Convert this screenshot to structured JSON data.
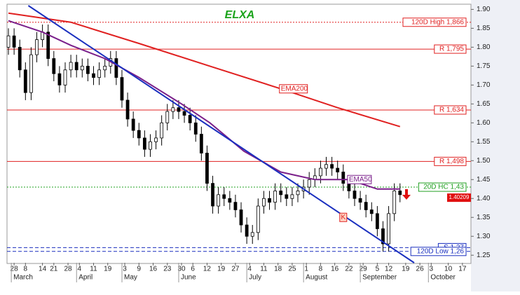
{
  "chart_data": {
    "type": "candlestick",
    "title": "ELXA",
    "x": [
      0,
      2,
      4,
      6,
      8,
      10,
      12,
      14,
      16,
      18,
      20,
      22,
      24,
      26,
      28,
      30,
      32,
      34,
      36,
      38,
      40,
      42,
      44,
      46,
      48,
      50,
      52,
      54,
      56,
      58,
      60,
      62,
      64,
      66,
      68,
      70,
      72,
      74,
      76,
      78,
      80,
      82,
      84,
      86,
      88,
      90,
      92,
      94,
      96,
      98,
      100,
      102,
      104,
      106,
      108,
      110,
      112,
      114,
      116,
      118,
      120,
      122,
      124,
      126,
      128,
      130,
      132,
      134,
      136,
      138
    ],
    "open": [
      1.8,
      1.83,
      1.8,
      1.74,
      1.68,
      1.78,
      1.82,
      1.84,
      1.77,
      1.73,
      1.7,
      1.74,
      1.76,
      1.74,
      1.75,
      1.73,
      1.72,
      1.74,
      1.75,
      1.77,
      1.72,
      1.66,
      1.61,
      1.58,
      1.56,
      1.53,
      1.55,
      1.56,
      1.6,
      1.63,
      1.64,
      1.63,
      1.62,
      1.6,
      1.57,
      1.52,
      1.44,
      1.38,
      1.41,
      1.4,
      1.39,
      1.37,
      1.33,
      1.3,
      1.31,
      1.38,
      1.4,
      1.39,
      1.42,
      1.41,
      1.4,
      1.41,
      1.42,
      1.43,
      1.45,
      1.46,
      1.48,
      1.49,
      1.48,
      1.47,
      1.44,
      1.42,
      1.4,
      1.39,
      1.37,
      1.36,
      1.32,
      1.28,
      1.36,
      1.42
    ],
    "high": [
      1.85,
      1.85,
      1.82,
      1.76,
      1.8,
      1.84,
      1.86,
      1.86,
      1.79,
      1.75,
      1.76,
      1.78,
      1.78,
      1.77,
      1.77,
      1.75,
      1.76,
      1.77,
      1.79,
      1.79,
      1.74,
      1.68,
      1.63,
      1.6,
      1.58,
      1.57,
      1.58,
      1.62,
      1.65,
      1.66,
      1.66,
      1.65,
      1.64,
      1.62,
      1.59,
      1.54,
      1.46,
      1.43,
      1.43,
      1.42,
      1.41,
      1.39,
      1.35,
      1.33,
      1.4,
      1.42,
      1.42,
      1.44,
      1.44,
      1.43,
      1.43,
      1.44,
      1.45,
      1.47,
      1.48,
      1.5,
      1.51,
      1.51,
      1.5,
      1.49,
      1.46,
      1.44,
      1.42,
      1.41,
      1.39,
      1.38,
      1.34,
      1.38,
      1.44,
      1.44
    ],
    "low": [
      1.78,
      1.78,
      1.72,
      1.66,
      1.66,
      1.76,
      1.8,
      1.75,
      1.71,
      1.68,
      1.68,
      1.72,
      1.72,
      1.72,
      1.71,
      1.7,
      1.7,
      1.72,
      1.73,
      1.7,
      1.64,
      1.59,
      1.56,
      1.54,
      1.51,
      1.51,
      1.53,
      1.54,
      1.58,
      1.61,
      1.61,
      1.6,
      1.58,
      1.55,
      1.5,
      1.42,
      1.36,
      1.36,
      1.38,
      1.37,
      1.35,
      1.31,
      1.28,
      1.28,
      1.29,
      1.36,
      1.37,
      1.37,
      1.39,
      1.38,
      1.38,
      1.39,
      1.4,
      1.41,
      1.43,
      1.44,
      1.46,
      1.46,
      1.45,
      1.42,
      1.4,
      1.38,
      1.37,
      1.35,
      1.34,
      1.3,
      1.26,
      1.26,
      1.34,
      1.39
    ],
    "close": [
      1.83,
      1.8,
      1.74,
      1.68,
      1.78,
      1.82,
      1.84,
      1.77,
      1.73,
      1.7,
      1.74,
      1.76,
      1.74,
      1.75,
      1.73,
      1.72,
      1.74,
      1.75,
      1.77,
      1.72,
      1.66,
      1.61,
      1.58,
      1.56,
      1.53,
      1.55,
      1.56,
      1.6,
      1.63,
      1.64,
      1.63,
      1.62,
      1.6,
      1.57,
      1.52,
      1.44,
      1.38,
      1.41,
      1.4,
      1.39,
      1.37,
      1.33,
      1.3,
      1.31,
      1.38,
      1.4,
      1.39,
      1.42,
      1.41,
      1.4,
      1.41,
      1.42,
      1.43,
      1.45,
      1.46,
      1.48,
      1.49,
      1.48,
      1.47,
      1.44,
      1.42,
      1.4,
      1.39,
      1.37,
      1.36,
      1.32,
      1.28,
      1.36,
      1.42,
      1.41
    ],
    "xlim": [
      -0.5,
      163
    ],
    "ylim": [
      1.23,
      1.91
    ],
    "xticks": [
      {
        "value": 2,
        "label": "28"
      },
      {
        "value": 6,
        "label": "8"
      },
      {
        "value": 12,
        "label": "14"
      },
      {
        "value": 16,
        "label": "21"
      },
      {
        "value": 21,
        "label": "28"
      },
      {
        "value": 25,
        "label": "4"
      },
      {
        "value": 30,
        "label": "11"
      },
      {
        "value": 35,
        "label": "19"
      },
      {
        "value": 41,
        "label": "3"
      },
      {
        "value": 46,
        "label": "9"
      },
      {
        "value": 51,
        "label": "16"
      },
      {
        "value": 56,
        "label": "23"
      },
      {
        "value": 61,
        "label": "30"
      },
      {
        "value": 65,
        "label": "6"
      },
      {
        "value": 70,
        "label": "12"
      },
      {
        "value": 75,
        "label": "19"
      },
      {
        "value": 80,
        "label": "27"
      },
      {
        "value": 85,
        "label": "4"
      },
      {
        "value": 90,
        "label": "11"
      },
      {
        "value": 95,
        "label": "18"
      },
      {
        "value": 100,
        "label": "25"
      },
      {
        "value": 105,
        "label": "1"
      },
      {
        "value": 110,
        "label": "8"
      },
      {
        "value": 115,
        "label": "16"
      },
      {
        "value": 120,
        "label": "22"
      },
      {
        "value": 125,
        "label": "29"
      },
      {
        "value": 130,
        "label": "5"
      },
      {
        "value": 134,
        "label": "12"
      },
      {
        "value": 140,
        "label": "19"
      },
      {
        "value": 145,
        "label": "26"
      },
      {
        "value": 149,
        "label": "3"
      },
      {
        "value": 155,
        "label": "10"
      },
      {
        "value": 160,
        "label": "17"
      }
    ],
    "months": [
      {
        "value": 2,
        "label": "March"
      },
      {
        "value": 25,
        "label": "April"
      },
      {
        "value": 41,
        "label": "May"
      },
      {
        "value": 61,
        "label": "June"
      },
      {
        "value": 85,
        "label": "July"
      },
      {
        "value": 105,
        "label": "August"
      },
      {
        "value": 125,
        "label": "September"
      },
      {
        "value": 149,
        "label": "October"
      }
    ],
    "yticks": [
      {
        "value": 1.9,
        "label": "1.90"
      },
      1.85,
      {
        "value": 1.8,
        "label": "1.80"
      },
      1.75,
      {
        "value": 1.7,
        "label": "1.70"
      },
      1.65,
      {
        "value": 1.6,
        "label": "1.60"
      },
      1.55,
      {
        "value": 1.5,
        "label": "1.50"
      },
      1.45,
      {
        "value": 1.4,
        "label": "1.40"
      },
      1.35,
      {
        "value": 1.3,
        "label": "1.30"
      },
      1.25
    ],
    "lines": [
      {
        "name": "EMA200",
        "color": "#e02020",
        "x": [
          0,
          22,
          46,
          71,
          96,
          116,
          138
        ],
        "values": [
          1.89,
          1.866,
          1.81,
          1.75,
          1.69,
          1.64,
          1.59
        ]
      },
      {
        "name": "EMA50",
        "color": "#7a1f8a",
        "x": [
          0,
          12,
          22,
          34,
          46,
          61,
          71,
          83,
          96,
          108,
          120,
          130,
          138
        ],
        "values": [
          1.87,
          1.84,
          1.805,
          1.77,
          1.72,
          1.65,
          1.6,
          1.525,
          1.47,
          1.45,
          1.45,
          1.425,
          1.425
        ]
      },
      {
        "color": "#1a2fbf",
        "x": [
          7,
          143
        ],
        "values": [
          1.91,
          1.23
        ]
      }
    ],
    "levels": [
      {
        "value": 1.866,
        "label": "120D High 1,866",
        "color": "#e02020",
        "style": "dotted"
      },
      {
        "value": 1.795,
        "label": "R 1,795",
        "color": "#e02020",
        "style": "solid"
      },
      {
        "value": 1.634,
        "label": "R 1,634",
        "color": "#e02020",
        "style": "solid"
      },
      {
        "value": 1.498,
        "label": "R 1,498",
        "color": "#e02020",
        "style": "solid"
      },
      {
        "value": 1.43,
        "label": "20D HC 1,43",
        "color": "#22a022",
        "style": "dotted"
      },
      {
        "value": 1.27,
        "label": "S 1,27",
        "color": "#1a2fbf",
        "style": "dashed"
      },
      {
        "value": 1.26,
        "label": "120D Low 1,26",
        "color": "#1a2fbf",
        "style": "dashed"
      }
    ],
    "marker": {
      "x": 118,
      "y": 1.35,
      "label": "K"
    },
    "last_price": {
      "value": 1.40209,
      "label": "1.40209"
    }
  }
}
